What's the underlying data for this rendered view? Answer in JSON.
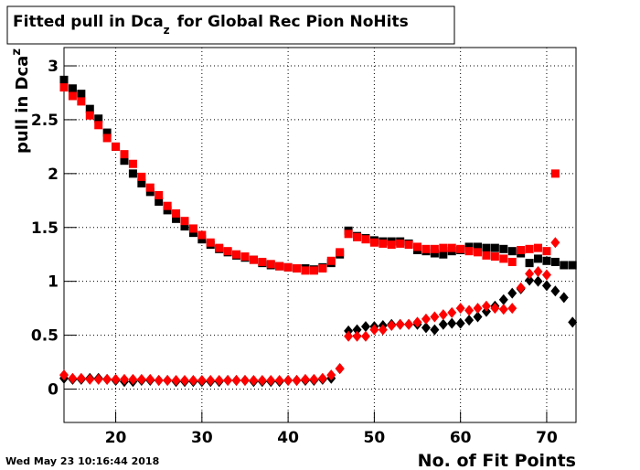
{
  "chart_data": {
    "type": "scatter",
    "title": {
      "text": "Fitted pull in Dca",
      "subscript": "z",
      "rest": "for Global Rec Pion NoHits"
    },
    "ylabel": {
      "text": "pull in Dca",
      "subscript": "z"
    },
    "xlabel": "No. of Fit Points",
    "timestamp": "Wed May 23 10:16:44 2018",
    "x": [
      14,
      15,
      16,
      17,
      18,
      19,
      20,
      21,
      22,
      23,
      24,
      25,
      26,
      27,
      28,
      29,
      30,
      31,
      32,
      33,
      34,
      35,
      36,
      37,
      38,
      39,
      40,
      41,
      42,
      43,
      44,
      45,
      46,
      47,
      48,
      49,
      50,
      51,
      52,
      53,
      54,
      55,
      56,
      57,
      58,
      59,
      60,
      61,
      62,
      63,
      64,
      65,
      66,
      67,
      68,
      69,
      70,
      71,
      72,
      73
    ],
    "xlim": [
      14,
      73.4
    ],
    "ylim": [
      -0.31,
      3.17
    ],
    "xticks": [
      20,
      30,
      40,
      50,
      60,
      70
    ],
    "yticks": [
      0,
      0.5,
      1,
      1.5,
      2,
      2.5,
      3
    ],
    "grid": true,
    "series": [
      {
        "color": "#000000",
        "marker": "square",
        "values": [
          2.87,
          2.79,
          2.74,
          2.6,
          2.51,
          2.38,
          2.25,
          2.12,
          2.0,
          1.91,
          1.83,
          1.74,
          1.66,
          1.58,
          1.51,
          1.45,
          1.39,
          1.34,
          1.3,
          1.27,
          1.24,
          1.22,
          1.2,
          1.17,
          1.15,
          1.14,
          1.13,
          1.12,
          1.12,
          1.11,
          1.13,
          1.17,
          1.25,
          1.47,
          1.42,
          1.4,
          1.38,
          1.37,
          1.37,
          1.37,
          1.35,
          1.29,
          1.28,
          1.26,
          1.25,
          1.28,
          1.29,
          1.32,
          1.32,
          1.31,
          1.31,
          1.3,
          1.28,
          1.26,
          1.17,
          1.21,
          1.19,
          1.18,
          1.15,
          1.15
        ]
      },
      {
        "color": "#ff0000",
        "marker": "square",
        "values": [
          2.8,
          2.72,
          2.67,
          2.54,
          2.45,
          2.33,
          2.25,
          2.18,
          2.09,
          1.97,
          1.87,
          1.8,
          1.7,
          1.63,
          1.56,
          1.49,
          1.43,
          1.36,
          1.31,
          1.28,
          1.25,
          1.23,
          1.2,
          1.18,
          1.16,
          1.14,
          1.13,
          1.12,
          1.1,
          1.1,
          1.12,
          1.19,
          1.27,
          1.44,
          1.41,
          1.39,
          1.36,
          1.35,
          1.34,
          1.35,
          1.34,
          1.32,
          1.3,
          1.3,
          1.31,
          1.31,
          1.3,
          1.28,
          1.27,
          1.24,
          1.23,
          1.21,
          1.18,
          1.29,
          1.3,
          1.31,
          1.28,
          2.0,
          null,
          null
        ]
      },
      {
        "color": "#000000",
        "marker": "diamond",
        "values": [
          0.1,
          0.09,
          0.09,
          0.1,
          0.1,
          0.09,
          0.08,
          0.07,
          0.07,
          0.08,
          0.08,
          0.08,
          0.08,
          0.07,
          0.07,
          0.07,
          0.07,
          0.07,
          0.07,
          0.08,
          0.08,
          0.08,
          0.07,
          0.07,
          0.07,
          0.07,
          0.08,
          0.08,
          0.08,
          0.08,
          0.09,
          0.1,
          0.19,
          0.54,
          0.55,
          0.58,
          0.58,
          0.59,
          0.6,
          0.6,
          0.6,
          0.6,
          0.57,
          0.55,
          0.6,
          0.61,
          0.61,
          0.64,
          0.67,
          0.72,
          0.77,
          0.83,
          0.89,
          0.93,
          1.01,
          1.0,
          0.96,
          0.91,
          0.85,
          0.62
        ]
      },
      {
        "color": "#ff0000",
        "marker": "diamond",
        "values": [
          0.13,
          0.1,
          0.1,
          0.09,
          0.09,
          0.09,
          0.09,
          0.09,
          0.09,
          0.09,
          0.09,
          0.08,
          0.08,
          0.08,
          0.08,
          0.08,
          0.08,
          0.08,
          0.08,
          0.08,
          0.08,
          0.08,
          0.08,
          0.08,
          0.08,
          0.08,
          0.08,
          0.08,
          0.09,
          0.09,
          0.1,
          0.13,
          0.19,
          0.49,
          0.49,
          0.49,
          0.55,
          0.55,
          0.59,
          0.6,
          0.6,
          0.62,
          0.65,
          0.67,
          0.69,
          0.71,
          0.75,
          0.73,
          0.75,
          0.77,
          0.75,
          0.74,
          0.75,
          0.94,
          1.07,
          1.09,
          1.06,
          1.36,
          null,
          null
        ]
      }
    ]
  }
}
